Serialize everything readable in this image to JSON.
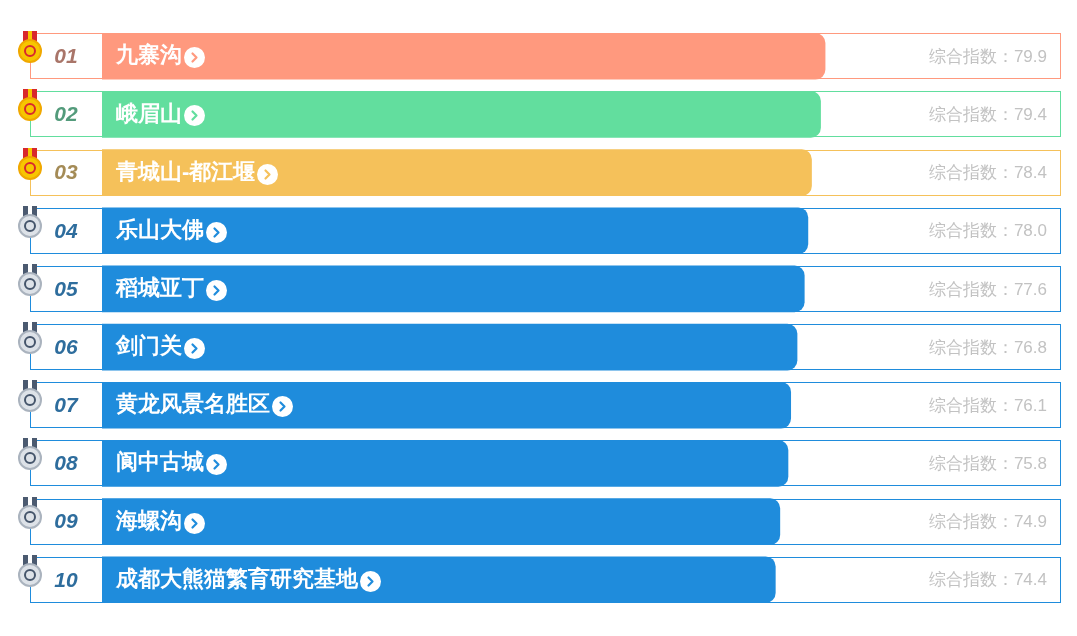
{
  "chart_data": {
    "type": "bar",
    "orientation": "horizontal",
    "categories": [
      "九寨沟",
      "峨眉山",
      "青城山-都江堰",
      "乐山大佛",
      "稻城亚丁",
      "剑门关",
      "黄龙风景名胜区",
      "阆中古城",
      "海螺沟",
      "成都大熊猫繁育研究基地"
    ],
    "values": [
      79.9,
      79.4,
      78.4,
      78.0,
      77.6,
      76.8,
      76.1,
      75.8,
      74.9,
      74.4
    ],
    "colors": [
      "#ff997e",
      "#62de9e",
      "#f5c15a",
      "#1f8cdc",
      "#1f8cdc",
      "#1f8cdc",
      "#1f8cdc",
      "#1f8cdc",
      "#1f8cdc",
      "#1f8cdc"
    ],
    "value_labels": [
      "综合指数：79.9",
      "综合指数：79.4",
      "综合指数：78.4",
      "综合指数：78.0",
      "综合指数：77.6",
      "综合指数：76.8",
      "综合指数：76.1",
      "综合指数：75.8",
      "综合指数：74.9",
      "综合指数：74.4"
    ],
    "annotations": [
      "01",
      "02",
      "03",
      "04",
      "05",
      "06",
      "07",
      "08",
      "09",
      "10"
    ],
    "tick_labels": "y"
  }
}
